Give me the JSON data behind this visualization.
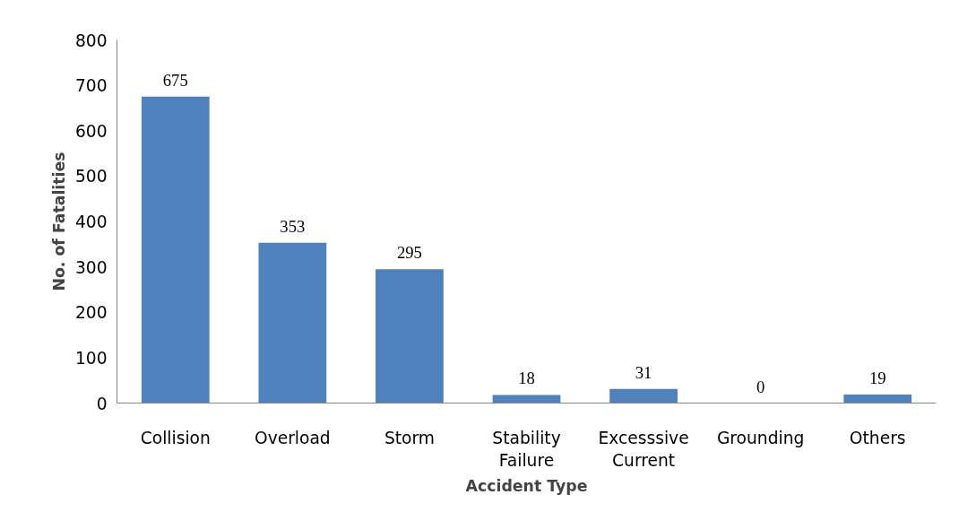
{
  "chart_data": {
    "type": "bar",
    "xlabel": "Accident Type",
    "ylabel": "No. of Fatalities",
    "categories": [
      "Collision",
      "Overload",
      "Storm",
      "Stability\nFailure",
      "Excesssive\nCurrent",
      "Grounding",
      "Others"
    ],
    "values": [
      675,
      353,
      295,
      18,
      31,
      0,
      19
    ],
    "color": "#4f81bd",
    "ylim": [
      0,
      800
    ],
    "yticks": [
      0,
      100,
      200,
      300,
      400,
      500,
      600,
      700,
      800
    ],
    "grid": false,
    "data_labels": true
  }
}
